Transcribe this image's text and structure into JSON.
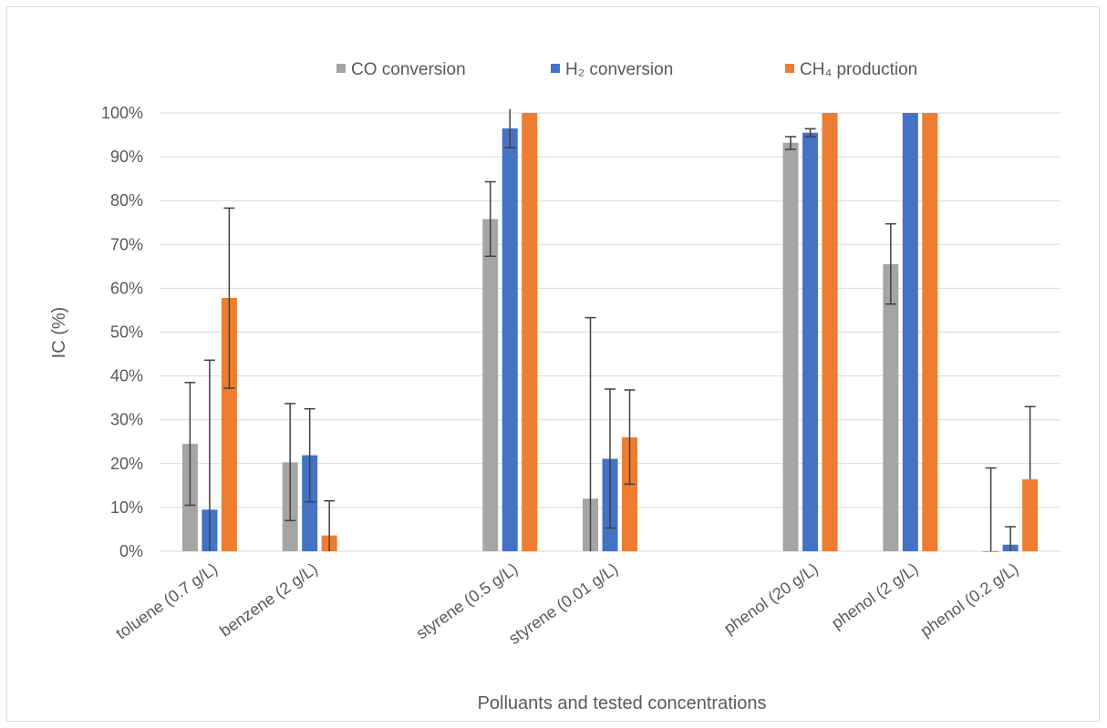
{
  "chart_data": {
    "type": "bar",
    "title": "",
    "xlabel": "Polluants and tested concentrations",
    "ylabel": "IC (%)",
    "ylim": [
      0,
      100
    ],
    "y_ticks": [
      "0%",
      "10%",
      "20%",
      "30%",
      "40%",
      "50%",
      "60%",
      "70%",
      "80%",
      "90%",
      "100%"
    ],
    "grid": true,
    "legend_position": "top",
    "categories": [
      "toluene (0.7 g/L)",
      "benzene (2 g/L)",
      "",
      "styrene (0.5 g/L)",
      "styrene (0.01 g/L)",
      "",
      "phenol (20 g/L)",
      "phenol (2 g/L)",
      "phenol (0.2 g/L)"
    ],
    "series": [
      {
        "name": "CO conversion",
        "color": "#a5a5a5",
        "values": [
          24.5,
          20.3,
          null,
          75.8,
          12.0,
          null,
          93.2,
          65.5,
          -0.3
        ],
        "error_low": [
          10.5,
          7.0,
          null,
          67.3,
          0,
          null,
          91.7,
          56.4,
          null
        ],
        "error_high": [
          38.5,
          33.7,
          null,
          84.3,
          53.3,
          null,
          94.6,
          74.7,
          19.0
        ]
      },
      {
        "name": "H₂ conversion",
        "color": "#4472c4",
        "values": [
          9.5,
          21.9,
          null,
          96.5,
          21.1,
          null,
          95.5,
          100,
          1.5
        ],
        "error_low": [
          0,
          11.3,
          null,
          92.1,
          5.3,
          null,
          94.6,
          null,
          0
        ],
        "error_high": [
          43.6,
          32.5,
          null,
          100.9,
          37.0,
          null,
          96.4,
          null,
          5.6
        ]
      },
      {
        "name": "CH₄ production",
        "color": "#ed7d31",
        "values": [
          57.8,
          3.6,
          null,
          100,
          26.0,
          null,
          100,
          100,
          16.4
        ],
        "error_low": [
          37.2,
          0,
          null,
          null,
          15.3,
          null,
          null,
          null,
          null
        ],
        "error_high": [
          78.3,
          11.5,
          null,
          null,
          36.8,
          null,
          null,
          null,
          33.0
        ]
      }
    ]
  }
}
